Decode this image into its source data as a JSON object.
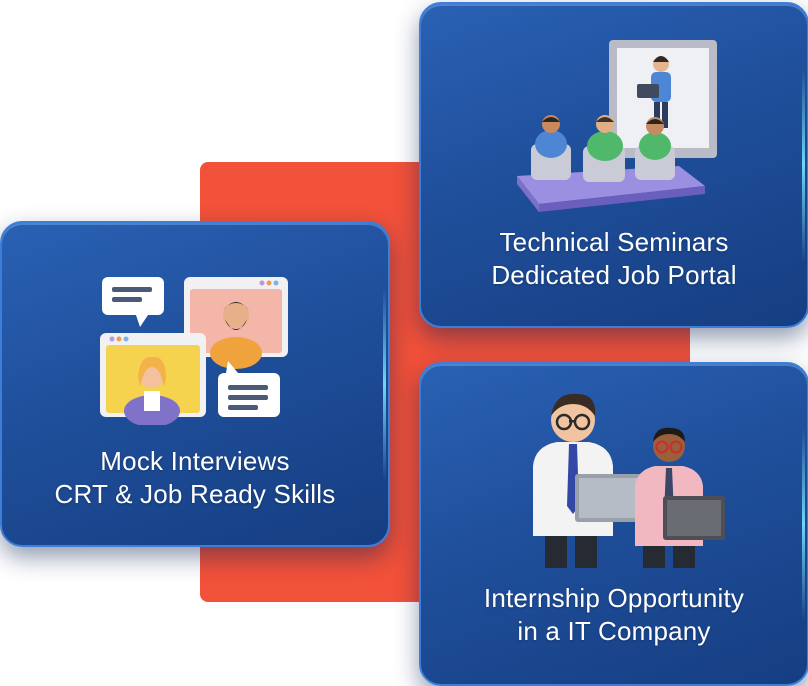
{
  "cards": [
    {
      "id": "mock",
      "line1": "Mock Interviews",
      "line2": "CRT & Job Ready Skills",
      "icon": "video-call-interview-icon"
    },
    {
      "id": "seminar",
      "line1": "Technical Seminars",
      "line2": "Dedicated Job Portal",
      "icon": "seminar-presentation-icon"
    },
    {
      "id": "intern",
      "line1": "Internship Opportunity",
      "line2": "in a IT Company",
      "icon": "professionals-with-laptops-icon"
    }
  ],
  "colors": {
    "accent": "#f2513a",
    "card_blue": "#1f4f9b",
    "card_border": "#3d7fd8",
    "text": "#ffffff"
  }
}
